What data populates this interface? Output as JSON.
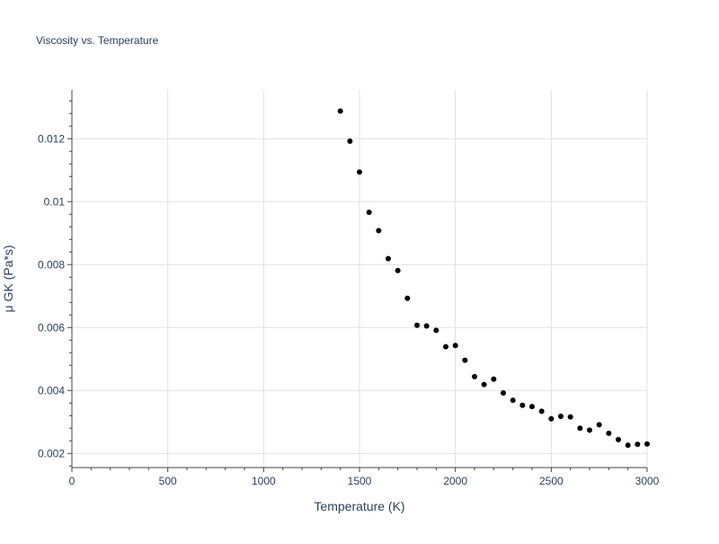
{
  "chart_data": {
    "type": "scatter",
    "title": "Viscosity vs. Temperature",
    "xlabel": "Temperature (K)",
    "ylabel": "μ GK (Pa*s)",
    "xlim": [
      0,
      3000
    ],
    "ylim": [
      0.00155,
      0.01355
    ],
    "x_ticks": [
      0,
      500,
      1000,
      1500,
      2000,
      2500,
      3000
    ],
    "x_tick_labels": [
      "0",
      "500",
      "1000",
      "1500",
      "2000",
      "2500",
      "3000"
    ],
    "y_ticks": [
      0.002,
      0.004,
      0.006,
      0.008,
      0.01,
      0.012
    ],
    "y_tick_labels": [
      "0.002",
      "0.004",
      "0.006",
      "0.008",
      "0.01",
      "0.012"
    ],
    "grid": true,
    "marker_color": "#000000",
    "grid_color": "#e0e0e0",
    "axis_color": "#444444",
    "text_color": "#2a3f5f",
    "series": [
      {
        "x": [
          1400,
          1450,
          1500,
          1550,
          1600,
          1650,
          1700,
          1750,
          1800,
          1850,
          1900,
          1950,
          2000,
          2050,
          2100,
          2150,
          2200,
          2250,
          2300,
          2350,
          2400,
          2450,
          2500,
          2550,
          2600,
          2650,
          2700,
          2750,
          2800,
          2850,
          2900,
          2950,
          3000
        ],
        "y": [
          0.01288,
          0.01192,
          0.01094,
          0.00966,
          0.00908,
          0.00819,
          0.00781,
          0.00693,
          0.00607,
          0.00605,
          0.00591,
          0.00539,
          0.00543,
          0.00496,
          0.00444,
          0.00419,
          0.00436,
          0.00392,
          0.00369,
          0.00353,
          0.00349,
          0.00334,
          0.0031,
          0.00318,
          0.00316,
          0.0028,
          0.00274,
          0.00291,
          0.00264,
          0.00244,
          0.00226,
          0.00229,
          0.0023
        ]
      }
    ]
  }
}
